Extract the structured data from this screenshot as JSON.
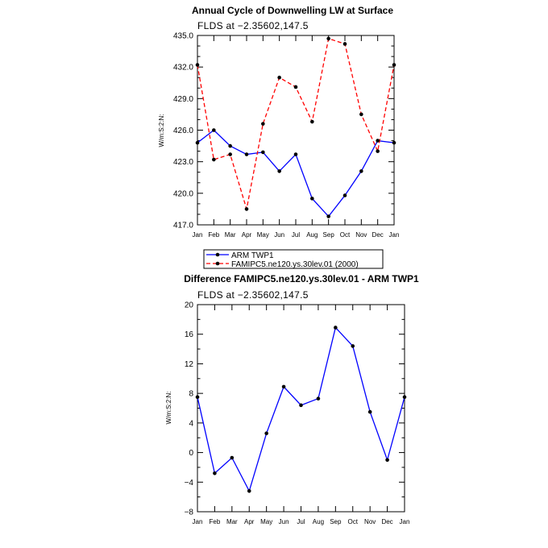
{
  "chart_data": [
    {
      "type": "line",
      "title": "Annual Cycle of Downwelling LW at Surface",
      "subtitle": "FLDS at −2.35602,147.5",
      "ylabel": "W/m:S:2:N:",
      "xlabel": "",
      "categories": [
        "Jan",
        "Feb",
        "Mar",
        "Apr",
        "May",
        "Jun",
        "Jul",
        "Aug",
        "Sep",
        "Oct",
        "Nov",
        "Dec",
        "Jan"
      ],
      "ylim": [
        417.0,
        435.0
      ],
      "yticks": [
        "417.0",
        "420.0",
        "423.0",
        "426.0",
        "429.0",
        "432.0",
        "435.0"
      ],
      "series": [
        {
          "name": "ARM  TWP1",
          "color": "#0000ff",
          "dash": "solid",
          "values": [
            424.8,
            426.0,
            424.5,
            423.7,
            423.9,
            422.1,
            423.7,
            419.5,
            417.8,
            419.8,
            422.1,
            425.0,
            424.8
          ]
        },
        {
          "name": "FAMIPC5.ne120.ys.30lev.01 (2000)",
          "color": "#ff0000",
          "dash": "dashed",
          "values": [
            432.2,
            423.2,
            423.7,
            418.5,
            426.6,
            431.0,
            430.1,
            426.8,
            434.7,
            434.2,
            427.5,
            424.0,
            432.2
          ]
        }
      ],
      "legend": "bottom"
    },
    {
      "type": "line",
      "title": "Difference FAMIPC5.ne120.ys.30lev.01 - ARM TWP1",
      "subtitle": "FLDS at −2.35602,147.5",
      "ylabel": "W/m:S:2:N:",
      "xlabel": "",
      "categories": [
        "Jan",
        "Feb",
        "Mar",
        "Apr",
        "May",
        "Jun",
        "Jul",
        "Aug",
        "Sep",
        "Oct",
        "Nov",
        "Dec",
        "Jan"
      ],
      "ylim": [
        -8,
        20
      ],
      "yticks": [
        "−8",
        "−4",
        "0",
        "4",
        "8",
        "12",
        "16",
        "20"
      ],
      "series": [
        {
          "name": "",
          "color": "#0000ff",
          "dash": "solid",
          "values": [
            7.5,
            -2.8,
            -0.7,
            -5.2,
            2.6,
            8.9,
            6.4,
            7.3,
            16.9,
            14.4,
            5.5,
            -1.0,
            7.5
          ]
        }
      ]
    }
  ]
}
